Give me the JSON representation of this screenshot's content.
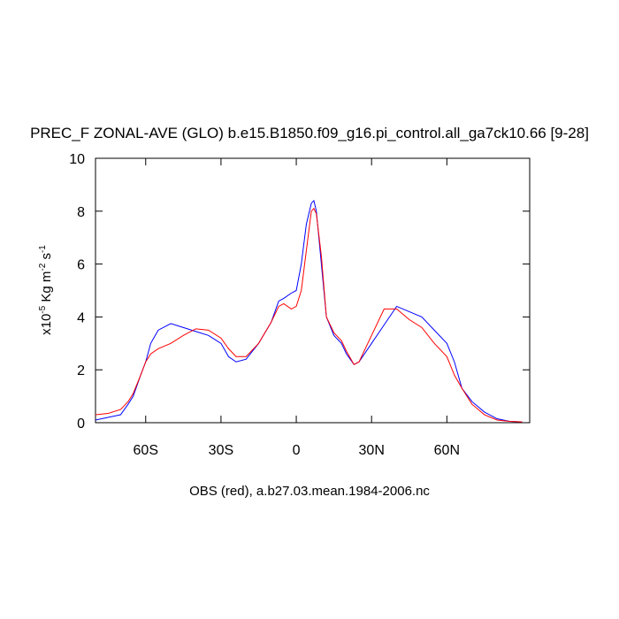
{
  "chart_data": {
    "type": "line",
    "title": "PREC_F ZONAL-AVE (GLO) b.e15.B1850.f09_g16.pi_control.all_ga7ck10.66 [9-28]",
    "ylabel": [
      "x10",
      "-5",
      " Kg m",
      "-2",
      " s",
      "-1"
    ],
    "xlabel": "OBS (red), a.b27.03.mean.1984-2006.nc",
    "x": [
      -80,
      -75,
      -70,
      -67,
      -65,
      -62,
      -60,
      -58,
      -55,
      -50,
      -45,
      -40,
      -35,
      -30,
      -27,
      -24,
      -20,
      -15,
      -10,
      -7,
      -5,
      -2,
      0,
      2,
      4,
      6,
      7,
      8,
      10,
      12,
      15,
      18,
      20,
      23,
      25,
      30,
      35,
      40,
      45,
      50,
      55,
      60,
      63,
      66,
      70,
      75,
      80,
      85,
      90
    ],
    "series": [
      {
        "color": "#0000ff",
        "values": [
          0.1,
          0.2,
          0.3,
          0.7,
          1.0,
          1.8,
          2.3,
          3.0,
          3.5,
          3.75,
          3.6,
          3.45,
          3.3,
          3.0,
          2.5,
          2.3,
          2.4,
          3.0,
          3.8,
          4.6,
          4.7,
          4.9,
          5.0,
          6.0,
          7.5,
          8.3,
          8.4,
          8.0,
          6.0,
          4.0,
          3.3,
          3.0,
          2.6,
          2.2,
          2.3,
          3.0,
          3.7,
          4.4,
          4.2,
          4.0,
          3.5,
          3.0,
          2.3,
          1.3,
          0.8,
          0.4,
          0.15,
          0.05,
          0.03
        ]
      },
      {
        "color": "#ff0000",
        "values": [
          0.3,
          0.35,
          0.5,
          0.8,
          1.1,
          1.8,
          2.3,
          2.6,
          2.8,
          3.0,
          3.3,
          3.55,
          3.5,
          3.2,
          2.8,
          2.5,
          2.5,
          3.0,
          3.8,
          4.4,
          4.5,
          4.3,
          4.4,
          5.0,
          6.5,
          8.0,
          8.1,
          7.9,
          6.3,
          4.0,
          3.4,
          3.1,
          2.7,
          2.2,
          2.3,
          3.3,
          4.3,
          4.3,
          3.9,
          3.6,
          3.0,
          2.5,
          1.8,
          1.3,
          0.7,
          0.3,
          0.1,
          0.05,
          0.03
        ]
      }
    ],
    "xlim": [
      -80,
      93
    ],
    "xticks": [
      {
        "value": -60,
        "label": "60S"
      },
      {
        "value": -30,
        "label": "30S"
      },
      0,
      {
        "value": 30,
        "label": "30N"
      },
      {
        "value": 60,
        "label": "60N"
      }
    ],
    "ylim": [
      0,
      10
    ],
    "yticks": [
      0,
      2,
      4,
      6,
      8,
      10
    ]
  }
}
